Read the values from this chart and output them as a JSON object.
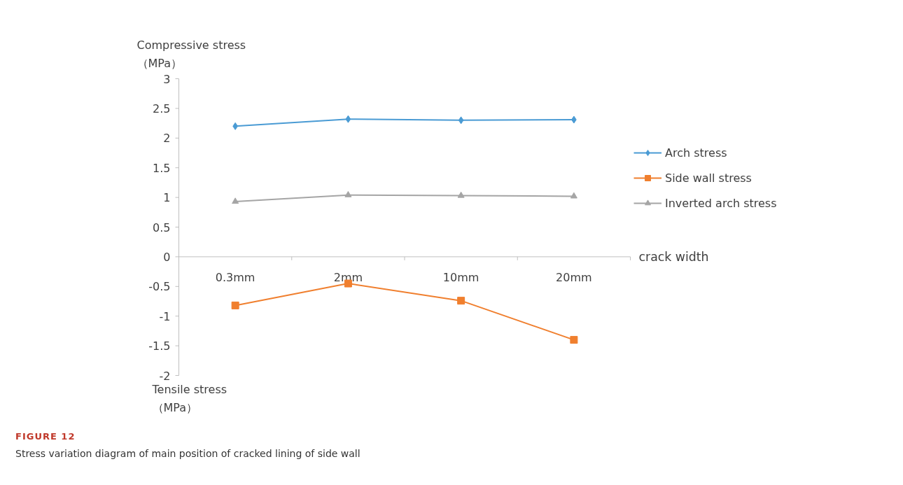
{
  "chart_data": {
    "type": "line",
    "title": "FIGURE 12",
    "subtitle": "Stress variation diagram of main position of cracked lining of side wall",
    "ylabel": "Compressive stress\n（MPa）",
    "xlabel": "crack width",
    "annotations": [
      "Tensile stress\n（MPa）"
    ],
    "categories": [
      "0.3mm",
      "2mm",
      "10mm",
      "20mm"
    ],
    "series": [
      {
        "name": "Arch stress",
        "color": "#4a9bd4",
        "marker": "diamond",
        "values": [
          2.2,
          2.32,
          2.3,
          2.31
        ]
      },
      {
        "name": "Side wall stress",
        "color": "#f07f2e",
        "marker": "square",
        "values": [
          -0.82,
          -0.45,
          -0.74,
          -1.4
        ]
      },
      {
        "name": "Inverted arch stress",
        "color": "#a5a5a5",
        "marker": "triangle",
        "values": [
          0.93,
          1.04,
          1.03,
          1.02
        ]
      }
    ],
    "ylim": [
      -2,
      3
    ],
    "yticks": [
      -2,
      -1.5,
      -1,
      -0.5,
      0,
      0.5,
      1,
      1.5,
      2,
      2.5,
      3
    ],
    "grid": false,
    "legend": "right"
  }
}
